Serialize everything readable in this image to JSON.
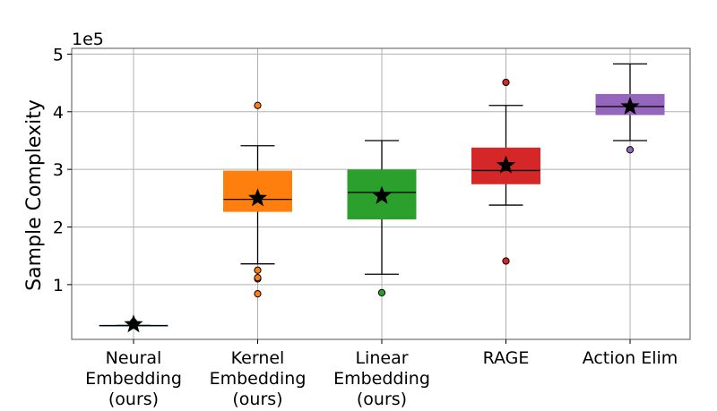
{
  "chart_data": {
    "type": "box",
    "ylabel": "Sample Complexity",
    "y_multiplier_label": "1e5",
    "ylim": [
      0.05,
      5.1
    ],
    "yticks": [
      1,
      2,
      3,
      4,
      5
    ],
    "grid": true,
    "categories": [
      [
        "Neural",
        "Embedding",
        "(ours)"
      ],
      [
        "Kernel",
        "Embedding",
        "(ours)"
      ],
      [
        "Linear",
        "Embedding",
        "(ours)"
      ],
      [
        "RAGE"
      ],
      [
        "Action Elim"
      ]
    ],
    "boxes": [
      {
        "color": "#1f77b4",
        "whisker_low": 0.29,
        "q1": 0.29,
        "median": 0.29,
        "q3": 0.29,
        "whisker_high": 0.29,
        "mean": 0.31,
        "outliers": [
          0.32,
          0.35
        ]
      },
      {
        "color": "#ff7f0e",
        "whisker_low": 1.36,
        "q1": 2.27,
        "median": 2.48,
        "q3": 2.97,
        "whisker_high": 3.41,
        "mean": 2.5,
        "outliers": [
          4.11,
          1.25,
          1.1,
          1.12,
          0.84
        ]
      },
      {
        "color": "#2ca02c",
        "whisker_low": 1.18,
        "q1": 2.14,
        "median": 2.6,
        "q3": 2.99,
        "whisker_high": 3.5,
        "mean": 2.54,
        "outliers": [
          0.86
        ]
      },
      {
        "color": "#d62728",
        "whisker_low": 2.38,
        "q1": 2.75,
        "median": 2.98,
        "q3": 3.37,
        "whisker_high": 4.11,
        "mean": 3.07,
        "outliers": [
          4.51,
          1.41
        ]
      },
      {
        "color": "#9467bd",
        "whisker_low": 3.5,
        "q1": 3.95,
        "median": 4.09,
        "q3": 4.3,
        "whisker_high": 4.83,
        "mean": 4.09,
        "outliers": [
          3.34
        ]
      }
    ]
  }
}
